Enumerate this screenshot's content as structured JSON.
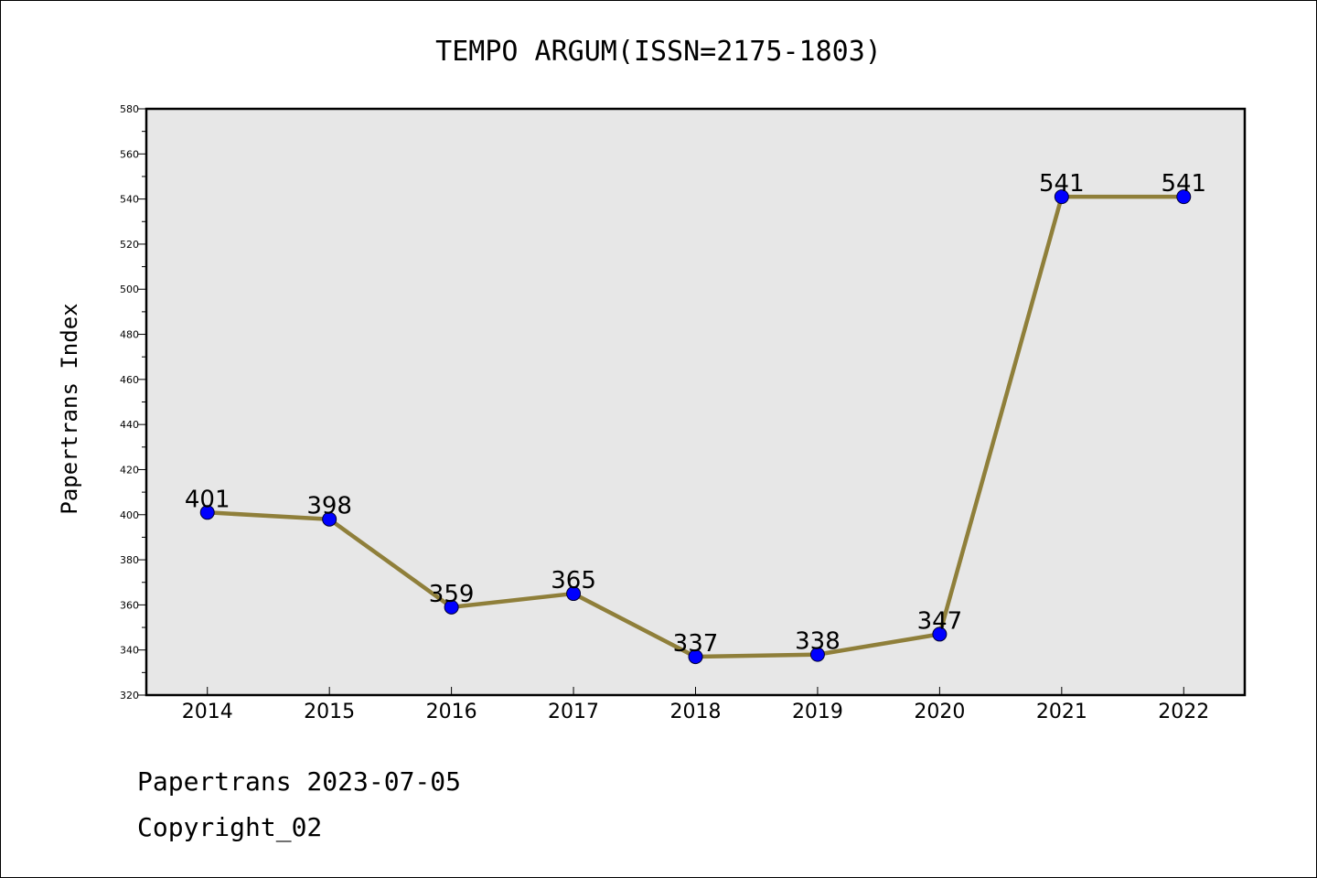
{
  "chart_data": {
    "type": "line",
    "title": "TEMPO ARGUM(ISSN=2175-1803)",
    "xlabel": "",
    "ylabel": "Papertrans Index",
    "categories": [
      "2014",
      "2015",
      "2016",
      "2017",
      "2018",
      "2019",
      "2020",
      "2021",
      "2022"
    ],
    "series": [
      {
        "values": [
          401,
          398,
          359,
          365,
          337,
          338,
          347,
          541,
          541
        ]
      }
    ],
    "ylim": [
      320,
      580
    ],
    "yticks": [
      320,
      340,
      360,
      380,
      400,
      420,
      440,
      460,
      480,
      500,
      520,
      540,
      560,
      580
    ],
    "grid": false,
    "colors": {
      "line": "#8f7f3a",
      "marker": "#0000ff",
      "plot_bg": "#e7e7e7"
    }
  },
  "footer": {
    "line1": "Papertrans 2023-07-05",
    "line2": "Copyright_02"
  }
}
